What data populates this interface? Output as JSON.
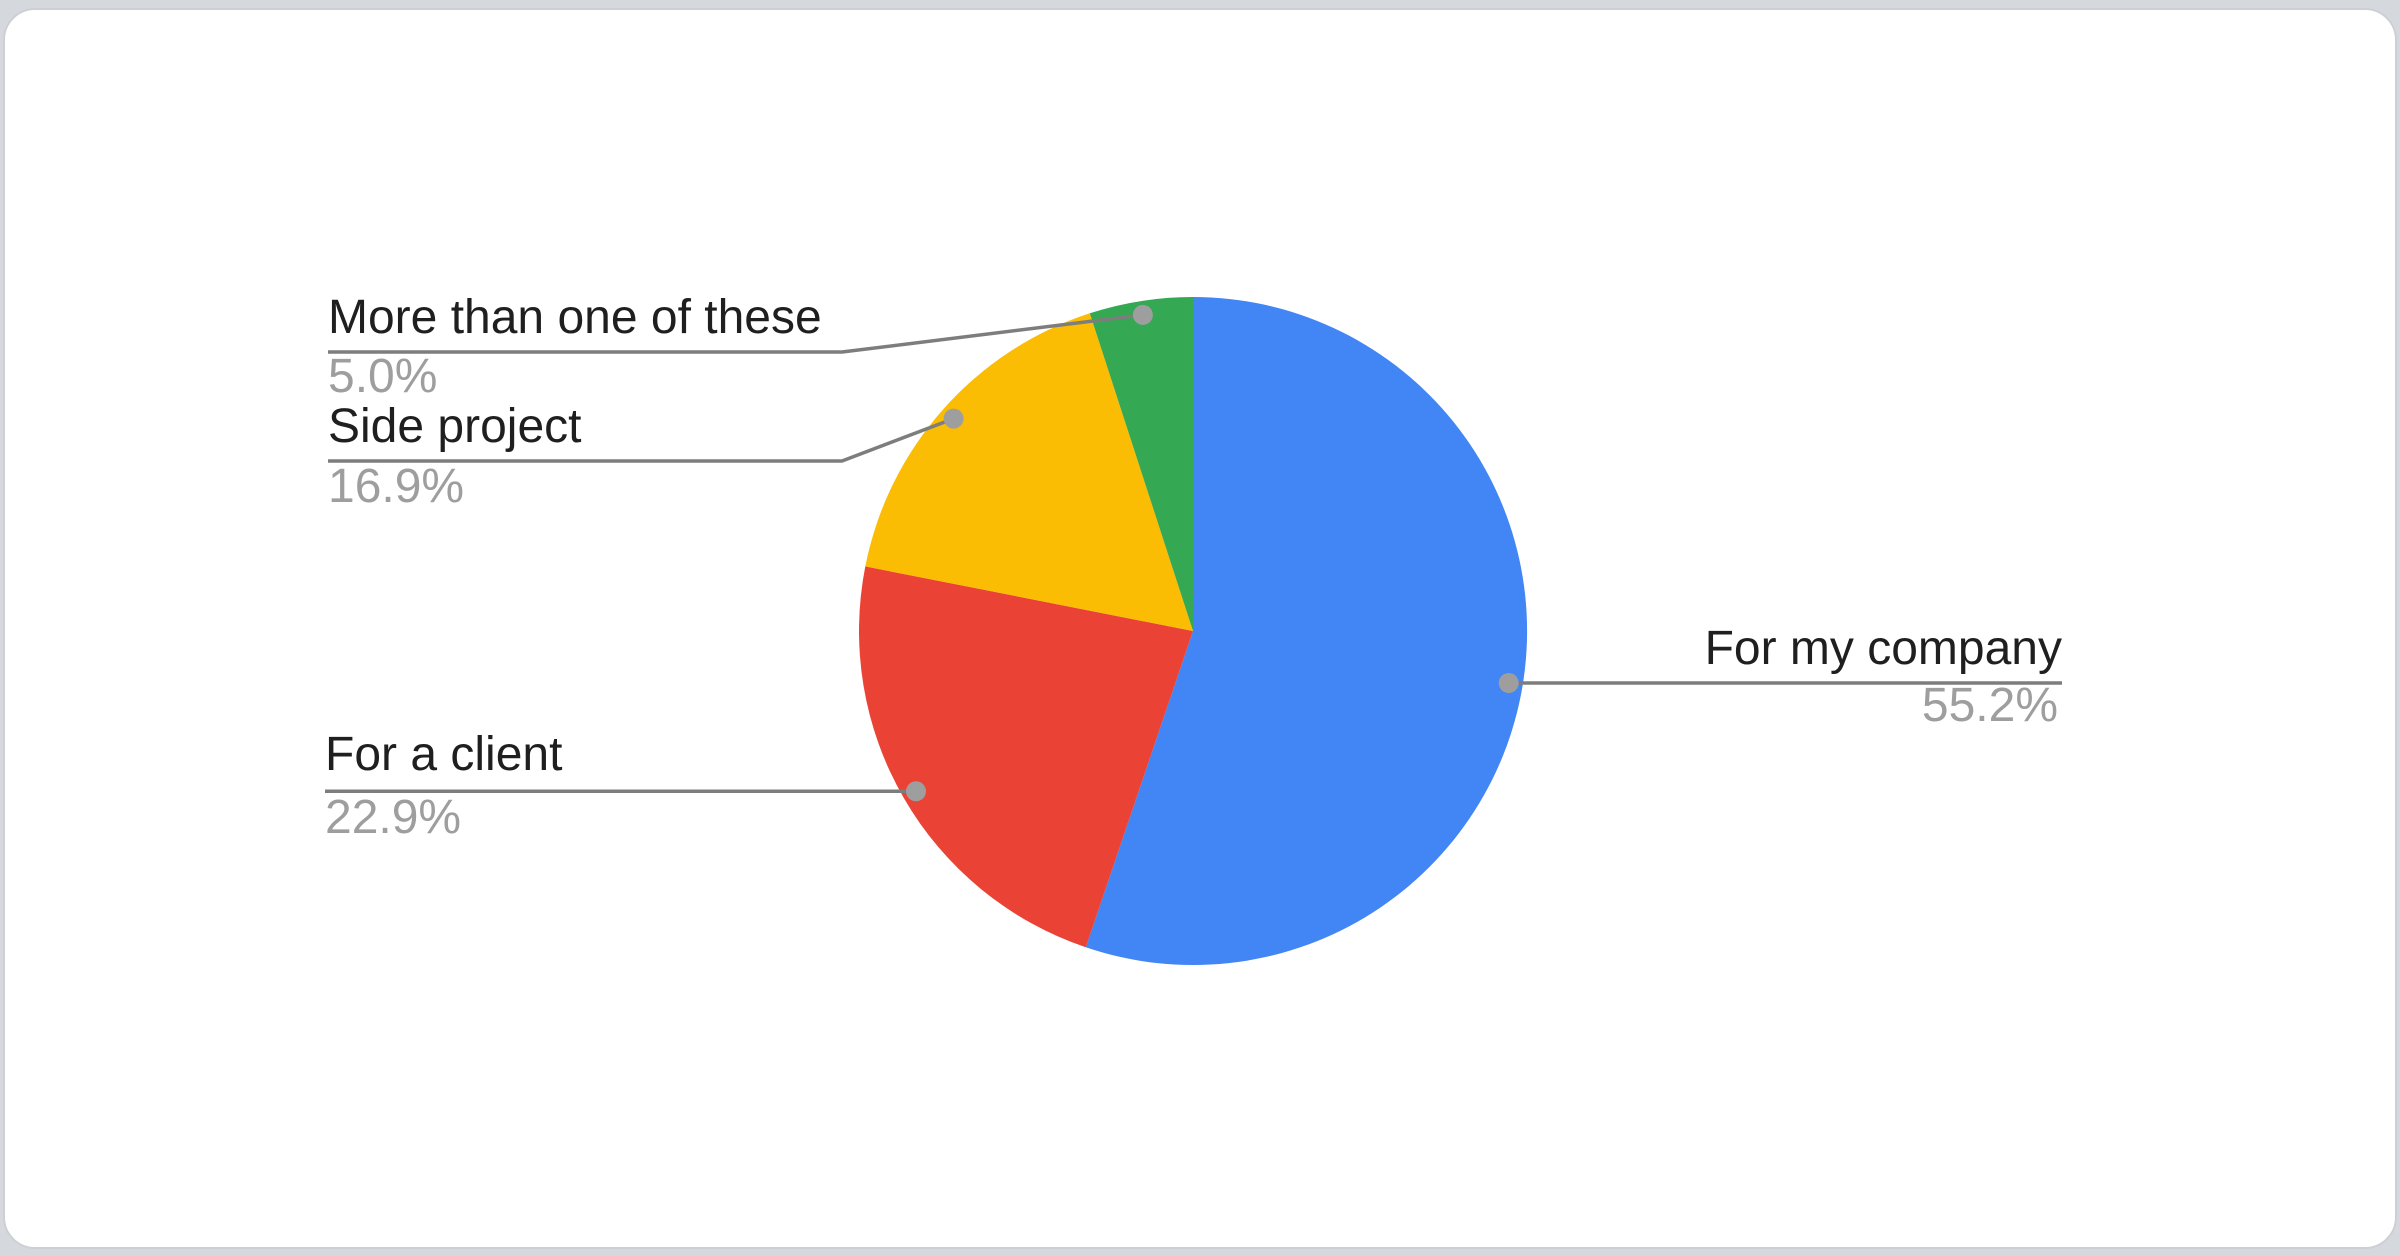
{
  "page": {
    "background_color": "#d5d8dc",
    "card_color": "#ffffff"
  },
  "chart_data": {
    "type": "pie",
    "title": "",
    "categories": [
      "For my company",
      "For a client",
      "Side project",
      "More than one of these"
    ],
    "values": [
      55.2,
      22.9,
      16.9,
      5.0
    ],
    "series": [
      {
        "name": "For my company",
        "value": 55.2,
        "display": "55.2%",
        "color": "#4285F4"
      },
      {
        "name": "For a client",
        "value": 22.9,
        "display": "22.9%",
        "color": "#EA4335"
      },
      {
        "name": "Side project",
        "value": 16.9,
        "display": "16.9%",
        "color": "#FBBC04"
      },
      {
        "name": "More than one of these",
        "value": 5.0,
        "display": "5.0%",
        "color": "#34A853"
      }
    ],
    "start_angle_deg": 0,
    "direction": "clockwise",
    "legend_position": "outside-callouts",
    "label_color": "#1f1f1f",
    "percent_color": "#9e9e9e",
    "leader_line_color": "#7d7d7d",
    "callout_dot_color": "#9e9e9e"
  }
}
